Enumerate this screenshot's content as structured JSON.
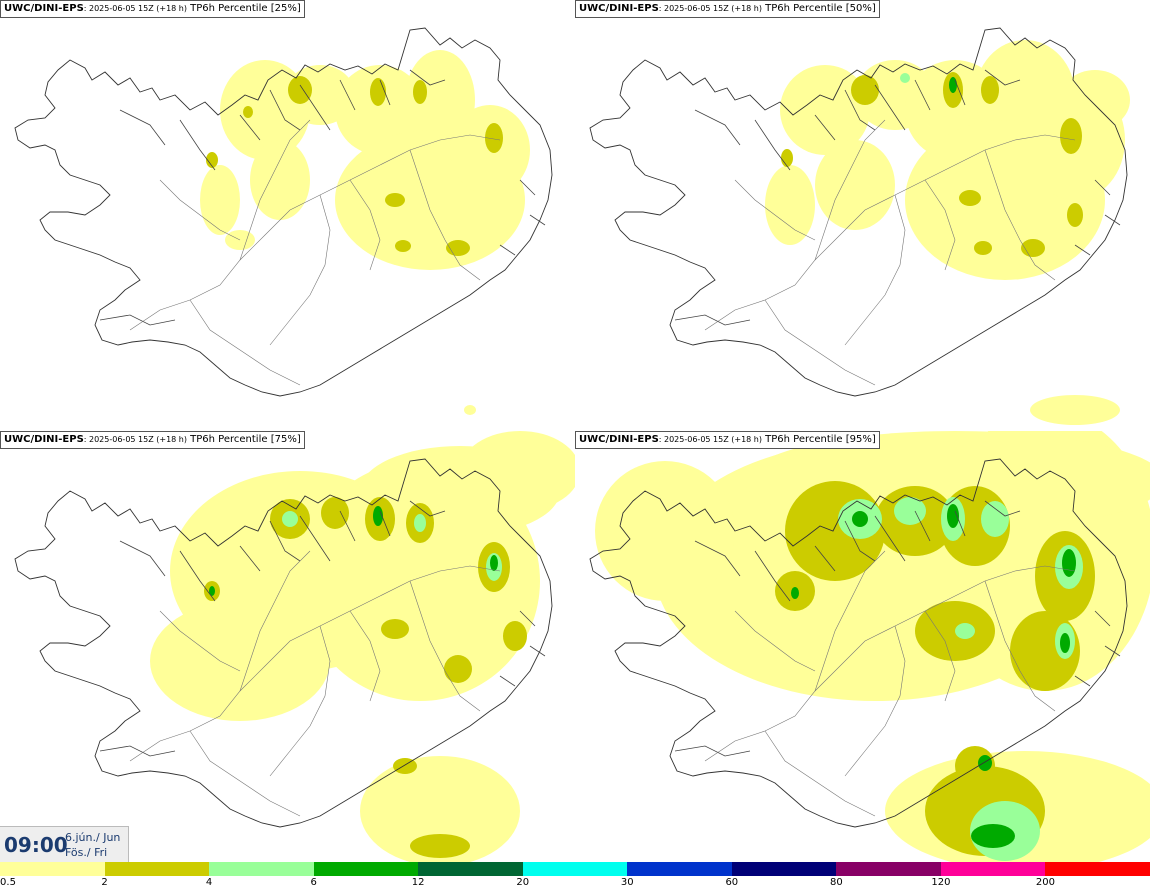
{
  "panels": [
    {
      "model": "UWC/DINI-EPS",
      "run": ": 2025-06-05 15Z (+18 h)",
      "field": " TP6h Percentile [25%]",
      "level": 0
    },
    {
      "model": "UWC/DINI-EPS",
      "run": ": 2025-06-05 15Z (+18 h)",
      "field": " TP6h Percentile [50%]",
      "level": 1
    },
    {
      "model": "UWC/DINI-EPS",
      "run": ": 2025-06-05 15Z (+18 h)",
      "field": " TP6h Percentile [75%]",
      "level": 2
    },
    {
      "model": "UWC/DINI-EPS",
      "run": ": 2025-06-05 15Z (+18 h)",
      "field": " TP6h Percentile [95%]",
      "level": 3
    }
  ],
  "valid_time": {
    "time": "09:00",
    "date_line1": "6.jún./ Jun",
    "date_line2": "Fös./ Fri"
  },
  "colorbar": {
    "colors": [
      "#ffff99",
      "#cccc00",
      "#99ff99",
      "#00aa00",
      "#006633",
      "#00ffee",
      "#0033cc",
      "#000077",
      "#880066",
      "#ff0099",
      "#ff0000"
    ],
    "ticks": [
      "0.5",
      "2",
      "4",
      "6",
      "12",
      "20",
      "30",
      "60",
      "80",
      "120",
      "200"
    ]
  }
}
